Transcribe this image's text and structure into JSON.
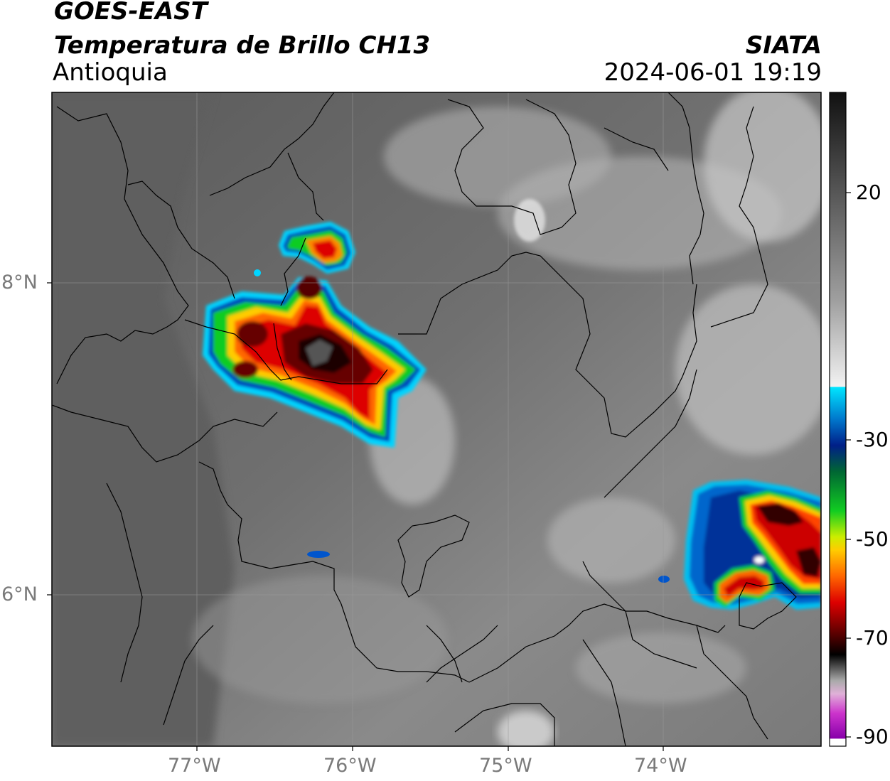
{
  "header": {
    "satellite": "GOES-EAST",
    "product": "Temperatura de Brillo CH13",
    "region": "Antioquia",
    "agency": "SIATA",
    "timestamp": "2024-06-01 19:19"
  },
  "map": {
    "lat_ticks": [
      "8°N",
      "6°N"
    ],
    "lon_ticks": [
      "77°W",
      "76°W",
      "75°W",
      "74°W"
    ]
  },
  "colorbar": {
    "tick_labels": [
      "20",
      "-30",
      "-50",
      "-70",
      "-90"
    ],
    "palette": {
      "gray_warm": "#5c5c5c",
      "white": "#f2f2f2",
      "cyan": "#00e5ff",
      "blue": "#0033aa",
      "green": "#11cc22",
      "yellow": "#ffee00",
      "orange": "#ff8800",
      "red": "#dd0000",
      "dark_red": "#550000",
      "black": "#000000",
      "magenta": "#cc33cc",
      "purple": "#8800aa"
    }
  }
}
